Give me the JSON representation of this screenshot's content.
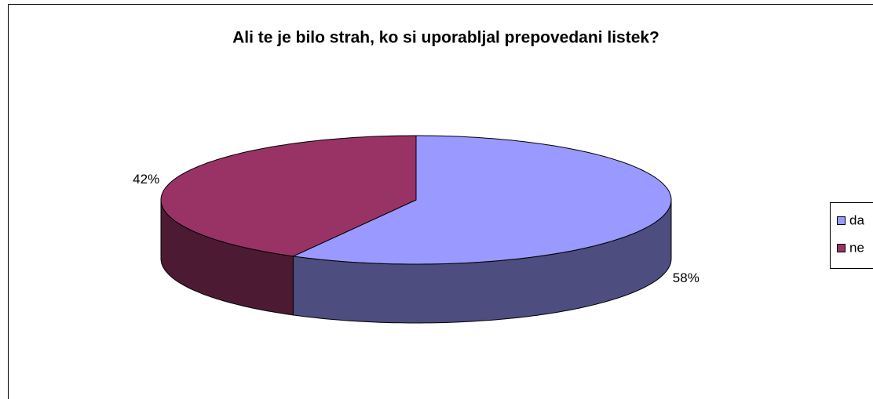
{
  "chart_data": {
    "type": "pie3d",
    "title": "Ali te je bilo strah, ko si uporabljal prepovedani listek?",
    "categories": [
      "da",
      "ne"
    ],
    "values": [
      58,
      42
    ],
    "value_labels": [
      "58%",
      "42%"
    ],
    "colors": [
      "#9999ff",
      "#993366"
    ],
    "legend": "right"
  }
}
